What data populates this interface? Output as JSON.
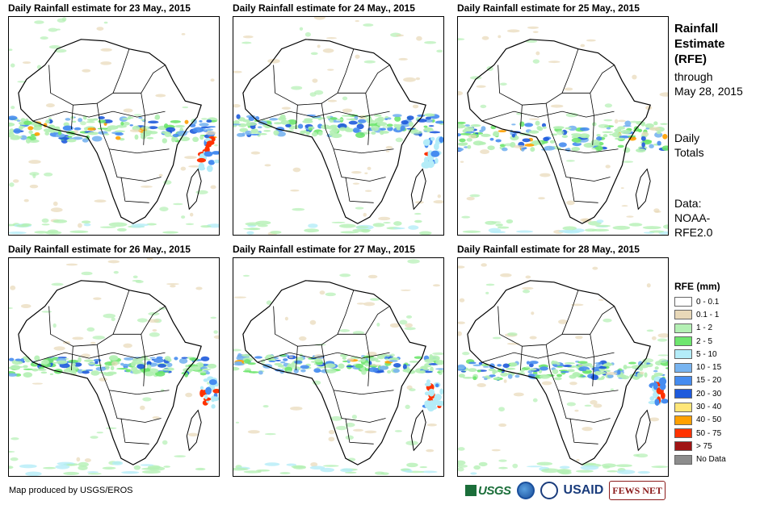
{
  "panels": [
    {
      "title": "Daily Rainfall estimate for 23 May., 2015"
    },
    {
      "title": "Daily Rainfall estimate for 24 May., 2015"
    },
    {
      "title": "Daily Rainfall estimate for 25 May., 2015"
    },
    {
      "title": "Daily Rainfall estimate for 26 May., 2015"
    },
    {
      "title": "Daily Rainfall estimate for 27 May., 2015"
    },
    {
      "title": "Daily Rainfall estimate for 28 May., 2015"
    }
  ],
  "side": {
    "title_line1": "Rainfall",
    "title_line2": "Estimate",
    "title_line3": "(RFE)",
    "through_line1": "through",
    "through_line2": "May 28, 2015",
    "daily_line1": "Daily",
    "daily_line2": "Totals",
    "data_line1": "Data:",
    "data_line2": "NOAA-",
    "data_line3": "RFE2.0"
  },
  "legend": {
    "title": "RFE (mm)",
    "items": [
      {
        "label": "0 - 0.1",
        "color": "#ffffff"
      },
      {
        "label": "0.1 - 1",
        "color": "#e8d8b8"
      },
      {
        "label": "1 - 2",
        "color": "#b4f0b4"
      },
      {
        "label": "2 - 5",
        "color": "#6ee66e"
      },
      {
        "label": "5 - 10",
        "color": "#b4ecf8"
      },
      {
        "label": "10 - 15",
        "color": "#78b4f0"
      },
      {
        "label": "15 - 20",
        "color": "#468cf0"
      },
      {
        "label": "20 - 30",
        "color": "#1e5adc"
      },
      {
        "label": "30 - 40",
        "color": "#ffe678"
      },
      {
        "label": "40 - 50",
        "color": "#ffa000"
      },
      {
        "label": "50 - 75",
        "color": "#ff3200"
      },
      {
        "label": "> 75",
        "color": "#a01414"
      },
      {
        "label": "No Data",
        "color": "#8c8c8c"
      }
    ]
  },
  "footer": {
    "credit": "Map produced by USGS/EROS"
  },
  "logos": {
    "usgs": "USGS",
    "usaid": "USAID",
    "fews": "FEWS NET"
  }
}
